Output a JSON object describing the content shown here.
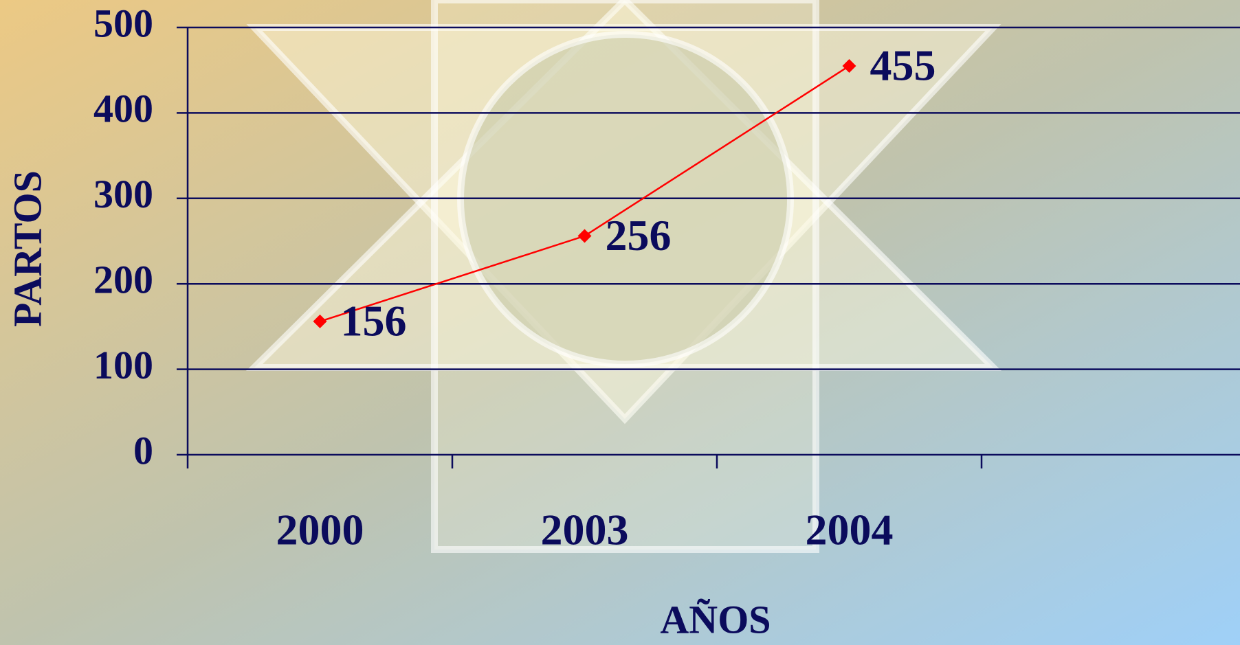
{
  "chart_data": {
    "type": "line",
    "x_label": "AÑOS",
    "y_label": "PARTOS",
    "categories": [
      "2000",
      "2003",
      "2004"
    ],
    "values": [
      156,
      256,
      455
    ],
    "color": "#ff0000",
    "ylim": [
      0,
      500
    ],
    "yticks": [
      0,
      100,
      200,
      300,
      400,
      500
    ],
    "grid": true
  }
}
